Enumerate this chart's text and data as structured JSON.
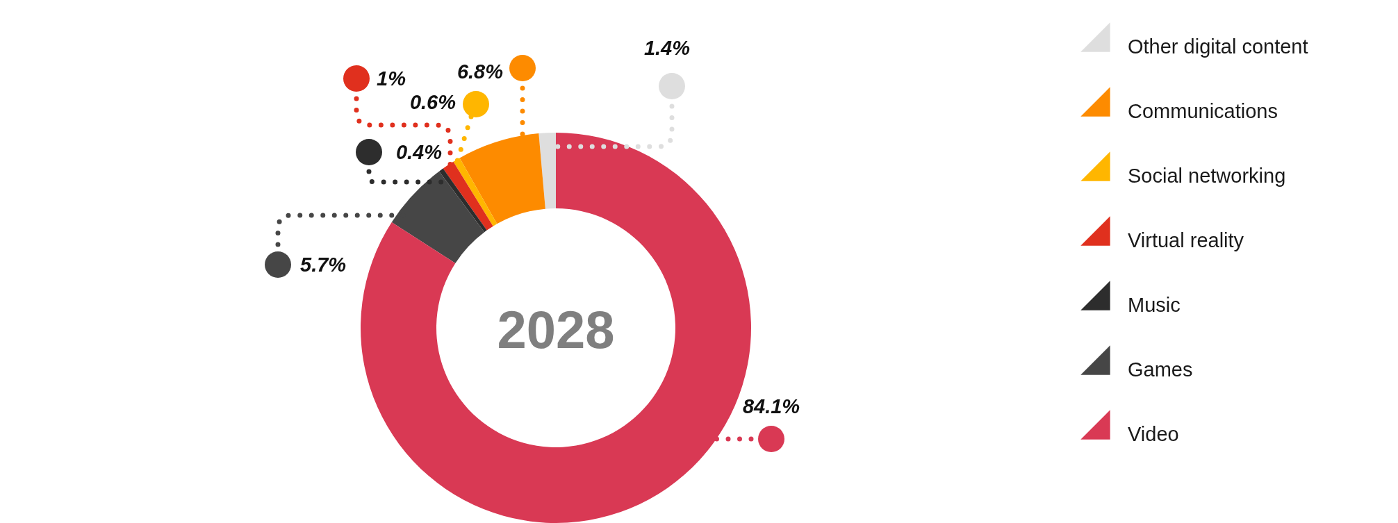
{
  "chart_data": {
    "type": "donut",
    "title": "2028",
    "categories": [
      "Other digital content",
      "Communications",
      "Social networking",
      "Virtual reality",
      "Music",
      "Games",
      "Video"
    ],
    "values": [
      1.4,
      6.8,
      0.6,
      1,
      0.4,
      5.7,
      84.1
    ],
    "colors": [
      "#dedede",
      "#fd8b00",
      "#ffb600",
      "#e0301e",
      "#2d2d2d",
      "#464646",
      "#d93954"
    ],
    "value_labels": [
      "1.4%",
      "6.8%",
      "0.6%",
      "1%",
      "0.4%",
      "5.7%",
      "84.1%"
    ],
    "legend": "right"
  }
}
